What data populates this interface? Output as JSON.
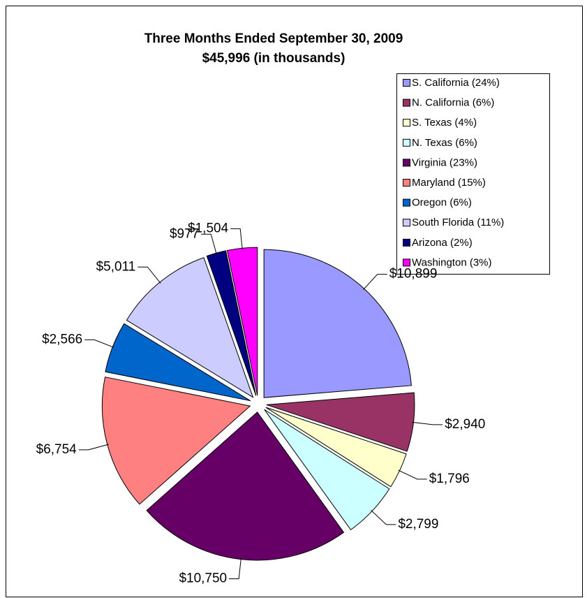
{
  "chart_data": {
    "type": "pie",
    "title": "Three Months Ended September 30, 2009",
    "subtitle": "$45,996 (in thousands)",
    "categories": [
      "S. California (24%)",
      "N. California (6%)",
      "S. Texas (4%)",
      "N. Texas (6%)",
      "Virginia (23%)",
      "Maryland (15%)",
      "Oregon (6%)",
      "South Florida (11%)",
      "Arizona (2%)",
      "Washington (3%)"
    ],
    "values": [
      10899,
      2940,
      1796,
      2799,
      10750,
      6754,
      2566,
      5011,
      977,
      1504
    ],
    "value_labels": [
      "$10,899",
      "$2,940",
      "$1,796",
      "$2,799",
      "$10,750",
      "$6,754",
      "$2,566",
      "$5,011",
      "$977",
      "$1,504"
    ],
    "colors": [
      "#9999ff",
      "#993366",
      "#ffffcc",
      "#ccffff",
      "#660066",
      "#ff8080",
      "#0066cc",
      "#ccccff",
      "#000080",
      "#ff00ff"
    ],
    "legend": "top-right"
  }
}
